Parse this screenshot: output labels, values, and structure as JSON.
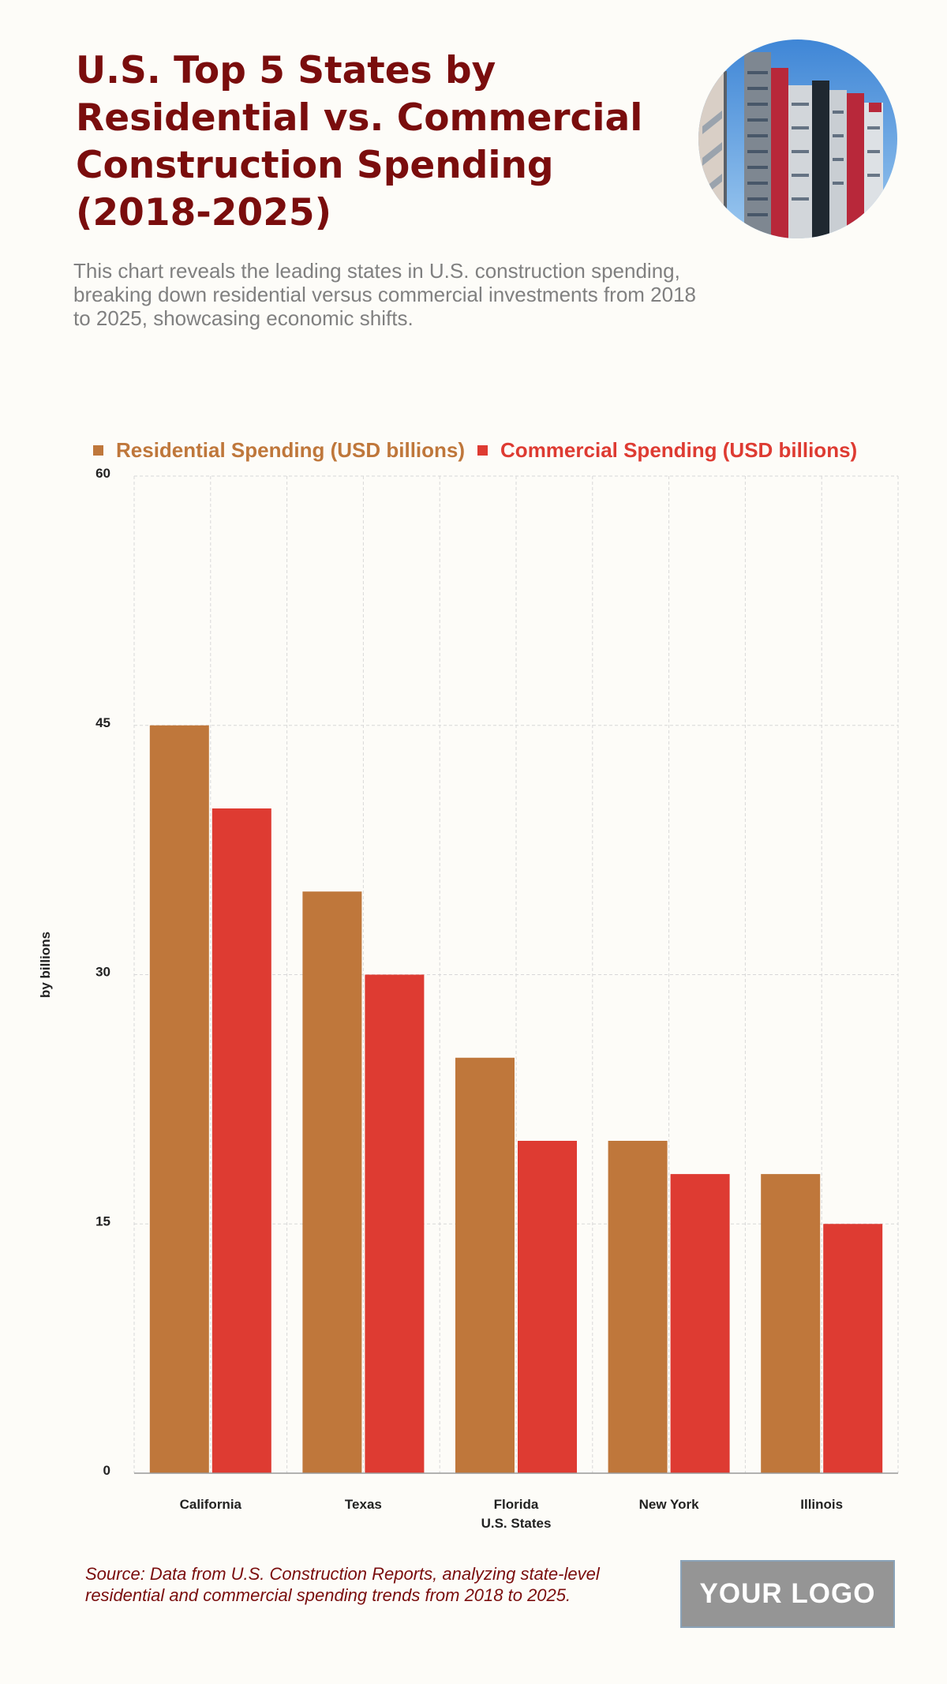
{
  "header": {
    "title": "U.S. Top 5 States by Residential vs. Commercial Construction Spending (2018-2025)",
    "subtitle": "This chart reveals the leading states in U.S. construction spending, breaking down residential versus commercial investments from 2018 to 2025, showcasing economic shifts."
  },
  "colors": {
    "title": "#7a0d0d",
    "residential": "#bf773b",
    "commercial": "#de3b32",
    "background": "#fdfcf8"
  },
  "chart_data": {
    "type": "bar",
    "title": "U.S. Top 5 States by Residential vs. Commercial Construction Spending (2018-2025)",
    "categories": [
      "California",
      "Texas",
      "Florida",
      "New York",
      "Illinois"
    ],
    "series": [
      {
        "name": "Residential Spending (USD billions)",
        "values": [
          45,
          35,
          25,
          20,
          18
        ]
      },
      {
        "name": "Commercial Spending (USD billions)",
        "values": [
          40,
          30,
          20,
          18,
          15
        ]
      }
    ],
    "xlabel": "U.S. States",
    "ylabel": "by billions",
    "ylim": [
      0,
      60
    ],
    "yticks": [
      0,
      15,
      30,
      45,
      60
    ],
    "grid": true,
    "legend": "top"
  },
  "footer": {
    "source": "Source: Data from U.S. Construction Reports, analyzing state-level residential and commercial spending trends from 2018 to 2025.",
    "logo_text": "YOUR LOGO"
  }
}
